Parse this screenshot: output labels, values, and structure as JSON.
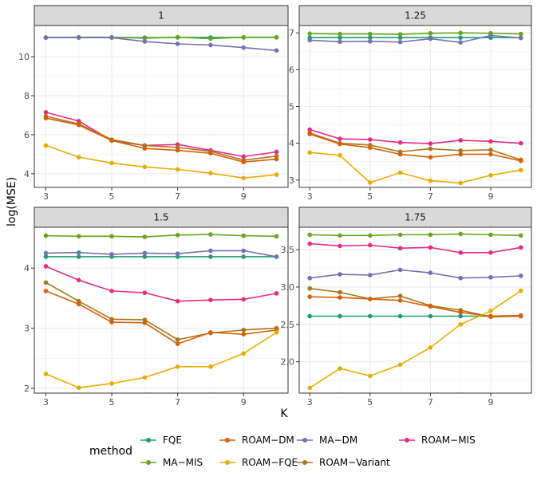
{
  "chart_data": {
    "type": "line",
    "ylabel": "log(MSE)",
    "xlabel": "K",
    "x": [
      3,
      4,
      5,
      6,
      7,
      8,
      9,
      10
    ],
    "xticks": [
      3,
      5,
      7,
      9
    ],
    "legend": {
      "title": "method",
      "placement": "bottom",
      "entries": [
        "FQE",
        "ROAM−DM",
        "MA−DM",
        "ROAM−MIS",
        "MA−MIS",
        "ROAM−FQE",
        "ROAM−Variant"
      ]
    },
    "colors": {
      "FQE": "#1b9e77",
      "ROAM−DM": "#d95f02",
      "MA−DM": "#7570b3",
      "ROAM−MIS": "#e7298a",
      "MA−MIS": "#66a61e",
      "ROAM−FQE": "#e6ab02",
      "ROAM−Variant": "#a6761d"
    },
    "panels": [
      {
        "label": "1",
        "ylim": [
          3.3,
          11.6
        ],
        "yticks": [
          4,
          6,
          8,
          10
        ],
        "series": [
          {
            "name": "FQE",
            "values": [
              10.98,
              10.99,
              10.99,
              10.98,
              10.99,
              10.99,
              10.99,
              10.99
            ]
          },
          {
            "name": "MA−MIS",
            "values": [
              10.99,
              11.0,
              11.0,
              10.95,
              11.0,
              10.93,
              11.0,
              11.0
            ]
          },
          {
            "name": "MA−DM",
            "values": [
              10.98,
              10.98,
              10.98,
              10.78,
              10.66,
              10.6,
              10.47,
              10.32
            ]
          },
          {
            "name": "ROAM−MIS",
            "values": [
              7.15,
              6.7,
              5.7,
              5.45,
              5.5,
              5.2,
              4.88,
              5.12
            ]
          },
          {
            "name": "ROAM−Variant",
            "values": [
              6.95,
              6.55,
              5.75,
              5.45,
              5.35,
              5.15,
              4.7,
              4.9
            ]
          },
          {
            "name": "ROAM−DM",
            "values": [
              6.85,
              6.5,
              5.7,
              5.3,
              5.2,
              5.05,
              4.6,
              4.75
            ]
          },
          {
            "name": "ROAM−FQE",
            "values": [
              5.45,
              4.85,
              4.55,
              4.35,
              4.22,
              4.03,
              3.78,
              3.95
            ]
          }
        ]
      },
      {
        "label": "1.25",
        "ylim": [
          2.8,
          7.2
        ],
        "yticks": [
          3,
          4,
          5,
          6,
          7
        ],
        "series": [
          {
            "name": "FQE",
            "values": [
              6.87,
              6.87,
              6.87,
              6.87,
              6.87,
              6.87,
              6.87,
              6.87
            ]
          },
          {
            "name": "MA−MIS",
            "values": [
              6.98,
              6.97,
              6.97,
              6.96,
              6.99,
              7.0,
              6.99,
              6.97
            ]
          },
          {
            "name": "MA−DM",
            "values": [
              6.8,
              6.76,
              6.77,
              6.75,
              6.84,
              6.74,
              6.93,
              6.86
            ]
          },
          {
            "name": "ROAM−MIS",
            "values": [
              4.37,
              4.12,
              4.1,
              4.02,
              3.99,
              4.08,
              4.05,
              4.0
            ]
          },
          {
            "name": "ROAM−Variant",
            "values": [
              4.28,
              4.0,
              3.95,
              3.77,
              3.85,
              3.8,
              3.82,
              3.55
            ]
          },
          {
            "name": "ROAM−DM",
            "values": [
              4.25,
              3.98,
              3.88,
              3.7,
              3.62,
              3.7,
              3.7,
              3.52
            ]
          },
          {
            "name": "ROAM−FQE",
            "values": [
              3.75,
              3.67,
              2.93,
              3.2,
              2.98,
              2.92,
              3.13,
              3.27
            ]
          }
        ]
      },
      {
        "label": "1.5",
        "ylim": [
          1.92,
          4.68
        ],
        "yticks": [
          2,
          3,
          4
        ],
        "series": [
          {
            "name": "FQE",
            "values": [
              4.19,
              4.19,
              4.19,
              4.19,
              4.19,
              4.19,
              4.19,
              4.19
            ]
          },
          {
            "name": "MA−MIS",
            "values": [
              4.54,
              4.53,
              4.53,
              4.52,
              4.55,
              4.56,
              4.54,
              4.53
            ]
          },
          {
            "name": "MA−DM",
            "values": [
              4.25,
              4.26,
              4.23,
              4.25,
              4.24,
              4.29,
              4.29,
              4.19
            ]
          },
          {
            "name": "ROAM−MIS",
            "values": [
              4.03,
              3.8,
              3.62,
              3.59,
              3.45,
              3.47,
              3.48,
              3.58
            ]
          },
          {
            "name": "ROAM−Variant",
            "values": [
              3.76,
              3.45,
              3.15,
              3.14,
              2.81,
              2.92,
              2.97,
              3.0
            ]
          },
          {
            "name": "ROAM−DM",
            "values": [
              3.62,
              3.4,
              3.1,
              3.09,
              2.74,
              2.93,
              2.9,
              2.97
            ]
          },
          {
            "name": "ROAM−FQE",
            "values": [
              2.24,
              2.01,
              2.08,
              2.18,
              2.36,
              2.36,
              2.58,
              2.93
            ]
          }
        ]
      },
      {
        "label": "1.75",
        "ylim": [
          1.58,
          3.8
        ],
        "yticks": [
          2.0,
          2.5,
          3.0,
          3.5
        ],
        "series": [
          {
            "name": "FQE",
            "values": [
              2.61,
              2.61,
              2.61,
              2.61,
              2.61,
              2.61,
              2.61,
              2.61
            ]
          },
          {
            "name": "MA−MIS",
            "values": [
              3.7,
              3.69,
              3.69,
              3.7,
              3.7,
              3.71,
              3.7,
              3.69
            ]
          },
          {
            "name": "MA−DM",
            "values": [
              3.12,
              3.17,
              3.16,
              3.23,
              3.19,
              3.12,
              3.13,
              3.15
            ]
          },
          {
            "name": "ROAM−MIS",
            "values": [
              3.58,
              3.55,
              3.56,
              3.52,
              3.53,
              3.46,
              3.46,
              3.53
            ]
          },
          {
            "name": "ROAM−Variant",
            "values": [
              2.98,
              2.93,
              2.84,
              2.88,
              2.75,
              2.69,
              2.6,
              2.61
            ]
          },
          {
            "name": "ROAM−DM",
            "values": [
              2.87,
              2.86,
              2.84,
              2.82,
              2.74,
              2.66,
              2.61,
              2.62
            ]
          },
          {
            "name": "ROAM−FQE",
            "values": [
              1.65,
              1.91,
              1.81,
              1.96,
              2.19,
              2.5,
              2.68,
              2.95
            ]
          }
        ]
      }
    ]
  }
}
